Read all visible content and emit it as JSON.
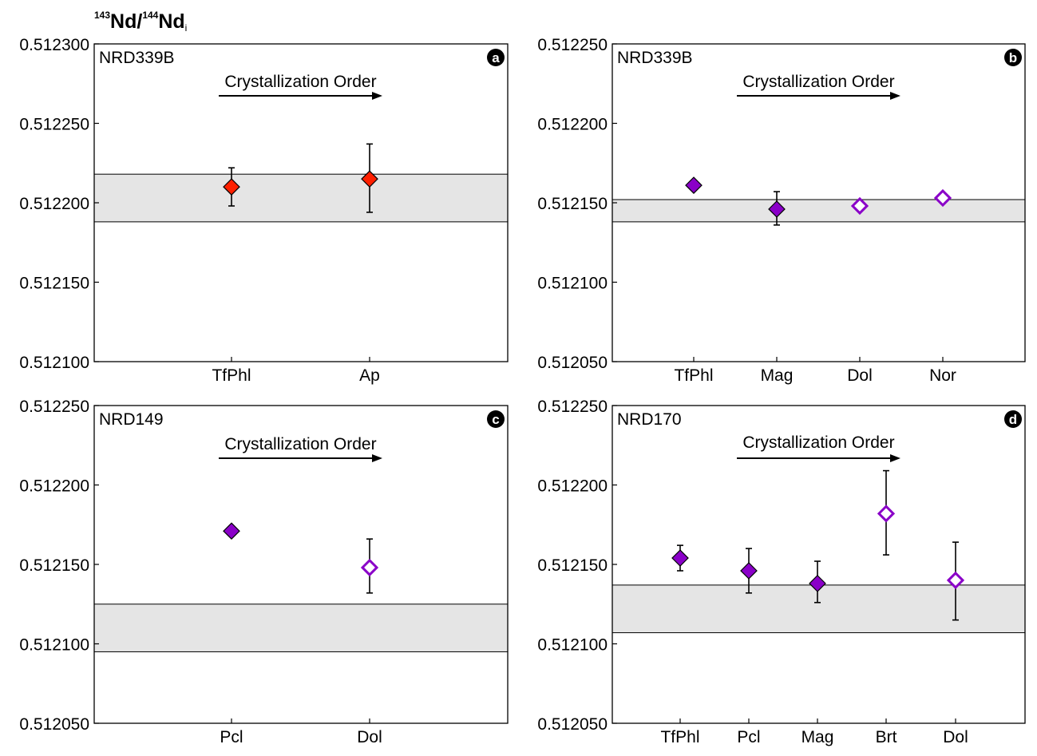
{
  "y_title": {
    "m1": "143",
    "t1": "Nd/",
    "m2": "144",
    "t2": "Nd",
    "sub": "i"
  },
  "colors": {
    "red": "#ff2000",
    "purple": "#8a00c8",
    "band": "#e5e5e5"
  },
  "chart_data": [
    {
      "type": "scatter",
      "panel": "a",
      "sample": "NRD339B",
      "annotation": "Crystallization Order",
      "categories": [
        "TfPhl",
        "Ap"
      ],
      "ylim": [
        0.5121,
        0.5123
      ],
      "yticks": [
        "0.512100",
        "0.512150",
        "0.512200",
        "0.512250",
        "0.512300"
      ],
      "band": [
        0.512188,
        0.512218
      ],
      "points": [
        {
          "category": "TfPhl",
          "y": 0.51221,
          "err": [
            0.512198,
            0.512222
          ],
          "color": "red",
          "filled": true
        },
        {
          "category": "Ap",
          "y": 0.512215,
          "err": [
            0.512194,
            0.512237
          ],
          "color": "red",
          "filled": true
        }
      ]
    },
    {
      "type": "scatter",
      "panel": "b",
      "sample": "NRD339B",
      "annotation": "Crystallization Order",
      "categories": [
        "TfPhl",
        "Mag",
        "Dol",
        "Nor"
      ],
      "ylim": [
        0.51205,
        0.51225
      ],
      "yticks": [
        "0.512050",
        "0.512100",
        "0.512150",
        "0.512200",
        "0.512250"
      ],
      "band": [
        0.512138,
        0.512152
      ],
      "points": [
        {
          "category": "TfPhl",
          "y": 0.512161,
          "err": null,
          "color": "purple",
          "filled": true
        },
        {
          "category": "Mag",
          "y": 0.512146,
          "err": [
            0.512136,
            0.512157
          ],
          "color": "purple",
          "filled": true
        },
        {
          "category": "Dol",
          "y": 0.512148,
          "err": null,
          "color": "purple",
          "filled": false
        },
        {
          "category": "Nor",
          "y": 0.512153,
          "err": null,
          "color": "purple",
          "filled": false
        }
      ]
    },
    {
      "type": "scatter",
      "panel": "c",
      "sample": "NRD149",
      "annotation": "Crystallization Order",
      "categories": [
        "Pcl",
        "Dol"
      ],
      "ylim": [
        0.51205,
        0.51225
      ],
      "yticks": [
        "0.512050",
        "0.512100",
        "0.512150",
        "0.512200",
        "0.512250"
      ],
      "band": [
        0.512095,
        0.512125
      ],
      "points": [
        {
          "category": "Pcl",
          "y": 0.512171,
          "err": null,
          "color": "purple",
          "filled": true
        },
        {
          "category": "Dol",
          "y": 0.512148,
          "err": [
            0.512132,
            0.512166
          ],
          "color": "purple",
          "filled": false
        }
      ]
    },
    {
      "type": "scatter",
      "panel": "d",
      "sample": "NRD170",
      "annotation": "Crystallization Order",
      "categories": [
        "TfPhl",
        "Pcl",
        "Mag",
        "Brt",
        "Dol"
      ],
      "ylim": [
        0.51205,
        0.51225
      ],
      "yticks": [
        "0.512050",
        "0.512100",
        "0.512150",
        "0.512200",
        "0.512250"
      ],
      "band": [
        0.512107,
        0.512137
      ],
      "points": [
        {
          "category": "TfPhl",
          "y": 0.512154,
          "err": [
            0.512146,
            0.512162
          ],
          "color": "purple",
          "filled": true
        },
        {
          "category": "Pcl",
          "y": 0.512146,
          "err": [
            0.512132,
            0.51216
          ],
          "color": "purple",
          "filled": true
        },
        {
          "category": "Mag",
          "y": 0.512138,
          "err": [
            0.512126,
            0.512152
          ],
          "color": "purple",
          "filled": true
        },
        {
          "category": "Brt",
          "y": 0.512182,
          "err": [
            0.512156,
            0.512209
          ],
          "color": "purple",
          "filled": false
        },
        {
          "category": "Dol",
          "y": 0.51214,
          "err": [
            0.512115,
            0.512164
          ],
          "color": "purple",
          "filled": false
        }
      ]
    }
  ]
}
